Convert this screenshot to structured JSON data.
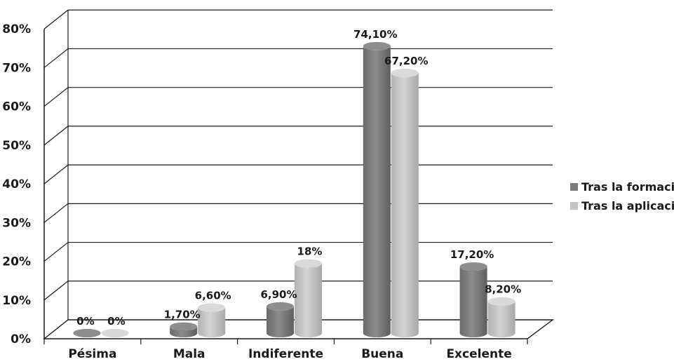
{
  "chart_data": {
    "type": "bar",
    "categories": [
      "Pésima",
      "Mala",
      "Indiferente",
      "Buena",
      "Excelente"
    ],
    "series": [
      {
        "name": "Tras la formación",
        "values": [
          0,
          1.7,
          6.9,
          74.1,
          17.2
        ],
        "labels": [
          "0%",
          "1,70%",
          "6,90%",
          "74,10%",
          "17,20%"
        ],
        "color": "#7d7d7d"
      },
      {
        "name": "Tras la aplicación",
        "values": [
          0,
          6.6,
          18,
          67.2,
          8.2
        ],
        "labels": [
          "0%",
          "6,60%",
          "18%",
          "67,20%",
          "8,20%"
        ],
        "color": "#c4c4c4"
      }
    ],
    "ylim": [
      0,
      80
    ],
    "y_ticks": [
      "0%",
      "10%",
      "20%",
      "30%",
      "40%",
      "50%",
      "60%",
      "70%",
      "80%"
    ],
    "grid": true,
    "legend_position": "right",
    "style": "3d-cylinder"
  }
}
